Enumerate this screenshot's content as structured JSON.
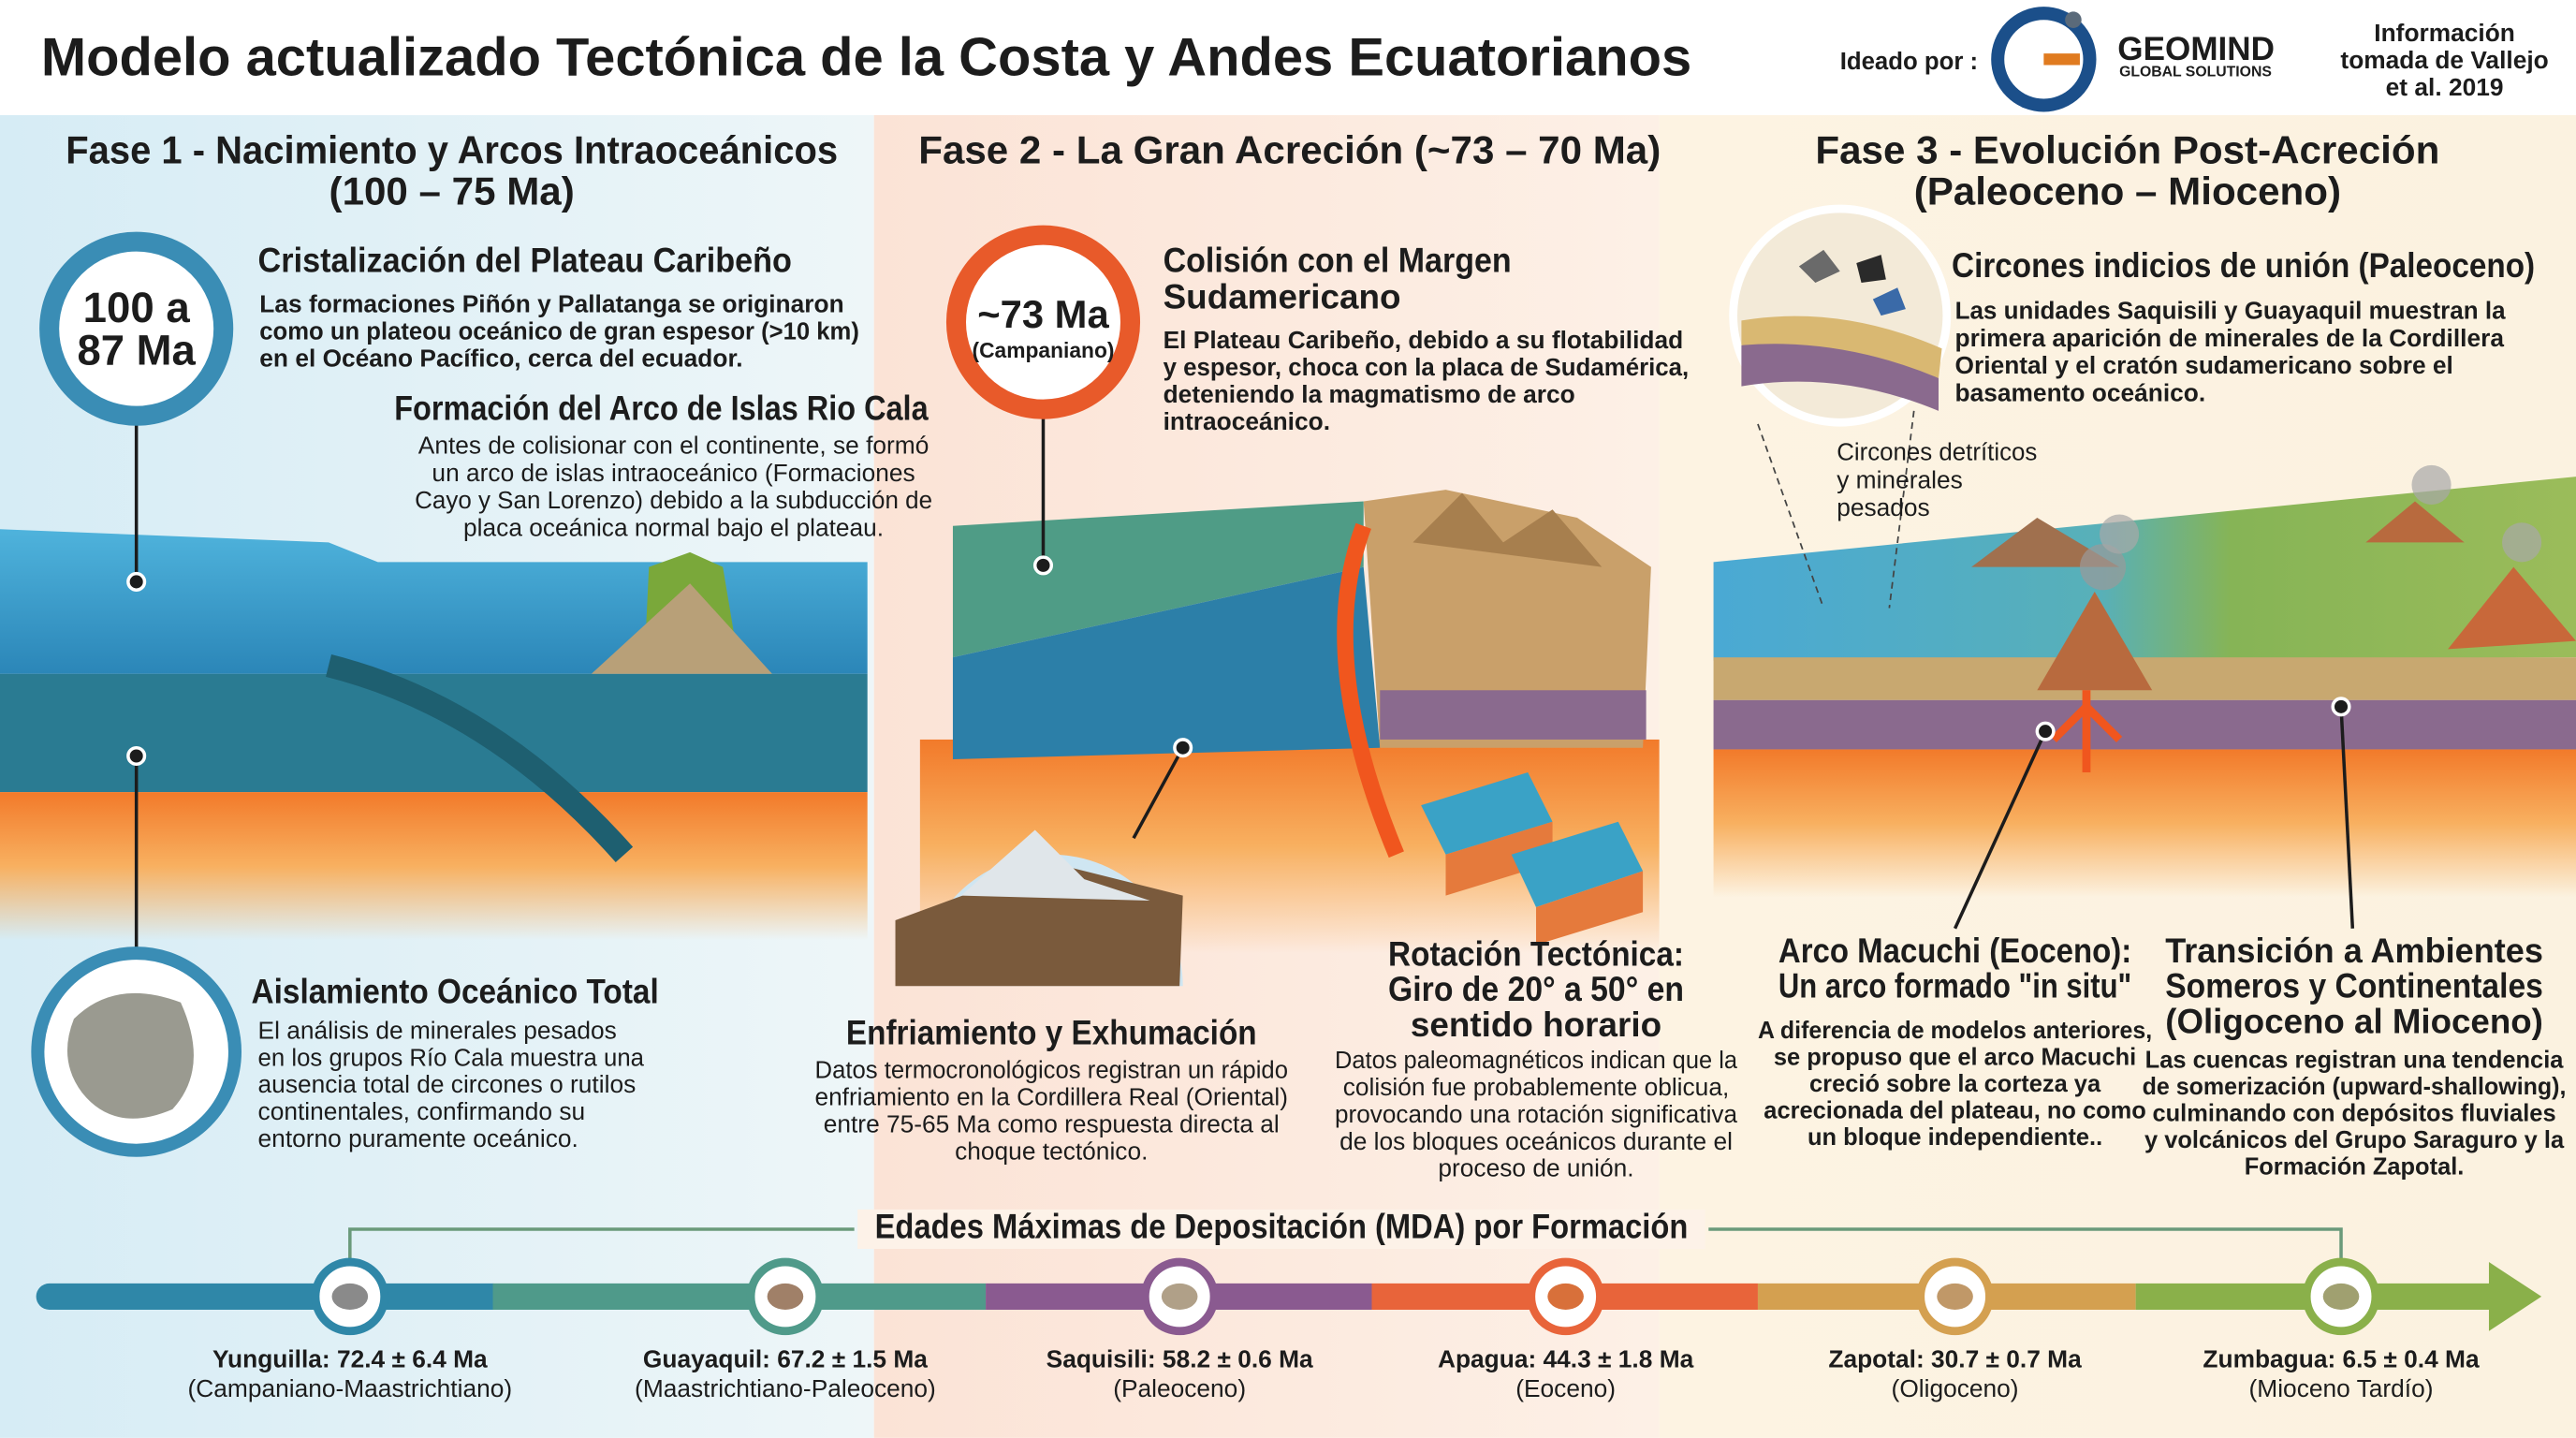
{
  "header": {
    "title": "Modelo actualizado Tectónica de la Costa y Andes Ecuatorianos",
    "credit_label": "Ideado por :",
    "logo_name": "GEOMIND",
    "logo_sub": "GLOBAL SOLUTIONS",
    "source": [
      "Información",
      "tomada de Vallejo",
      "et al. 2019"
    ]
  },
  "phases": [
    {
      "title": [
        "Fase 1 - Nacimiento y Arcos Intraoceánicos",
        "(100 – 75 Ma)"
      ],
      "badge": [
        "100 a",
        "87 Ma"
      ],
      "blocks": [
        {
          "title": [
            "Cristalización del Plateau Caribeño"
          ],
          "body": [
            "Las formaciones Piñón y Pallatanga se originaron",
            "como un plateou oceánico de gran espesor (>10 km)",
            "en el Océano Pacífico, cerca del ecuador."
          ]
        },
        {
          "title": [
            "Formación del Arco de Islas Rio Cala"
          ],
          "body": [
            "Antes de colisionar con el continente, se formó",
            "un arco de islas intraoceánico (Formaciones",
            "Cayo y San Lorenzo) debido a la subducción de",
            "placa oceánica normal bajo el plateau."
          ]
        },
        {
          "title": [
            "Aislamiento Oceánico Total"
          ],
          "body": [
            "El análisis de minerales pesados",
            "en los grupos Río Cala muestra una",
            "ausencia total de circones o rutilos",
            "continentales, confirmando su",
            "entorno puramente oceánico."
          ]
        }
      ]
    },
    {
      "title": [
        "Fase 2 - La Gran Acreción (~73 – 70 Ma)"
      ],
      "badge": [
        "~73 Ma",
        "(Campaniano)"
      ],
      "blocks": [
        {
          "title": [
            "Colisión con el Margen",
            "Sudamericano"
          ],
          "body": [
            "El Plateau Caribeño, debido a su flotabilidad",
            "y espesor, choca con la placa de Sudamérica,",
            "deteniendo la magmatismo de arco",
            "intraoceánico."
          ]
        },
        {
          "title": [
            "Enfriamiento y Exhumación"
          ],
          "body": [
            "Datos termocronológicos registran un rápido",
            "enfriamiento en la Cordillera Real (Oriental)",
            "entre 75-65 Ma como respuesta directa al",
            "choque tectónico."
          ]
        },
        {
          "title": [
            "Rotación Tectónica:",
            "Giro de 20° a 50° en",
            "sentido horario"
          ],
          "body": [
            "Datos paleomagnéticos indican que la",
            "colisión fue probablemente oblicua,",
            "provocando una rotación significativa",
            "de los bloques oceánicos durante el",
            "proceso de unión."
          ]
        }
      ]
    },
    {
      "title": [
        "Fase 3 - Evolución Post-Acreción",
        "(Paleoceno – Mioceno)"
      ],
      "callout": [
        "Circones detríticos",
        "y minerales",
        "pesados"
      ],
      "blocks": [
        {
          "title": [
            "Circones indicios de unión (Paleoceno)"
          ],
          "body": [
            "Las unidades Saquisili y Guayaquil muestran la",
            "primera aparición de minerales de la Cordillera",
            "Oriental y el cratón sudamericano sobre el",
            "basamento oceánico."
          ]
        },
        {
          "title": [
            "Arco Macuchi (Eoceno):",
            "Un arco formado \"in situ\""
          ],
          "body": [
            "A diferencia de modelos anteriores,",
            "se propuso que el arco Macuchi",
            "creció sobre la corteza ya",
            "acrecionada del plateau, no como",
            "un bloque independiente.."
          ]
        },
        {
          "title": [
            "Transición a Ambientes",
            "Someros y Continentales",
            "(Oligoceno al Mioceno)"
          ],
          "body": [
            "Las cuencas registran una tendencia",
            "de somerización (upward-shallowing),",
            "culminando con depósitos fluviales",
            "y volcánicos del Grupo Saraguro y la",
            "Formación Zapotal."
          ]
        }
      ]
    }
  ],
  "timeline": {
    "title": "Edades Máximas de Depositación (MDA) por Formación",
    "items": [
      {
        "label": "Yunguilla: 72.4 ± 6.4 Ma",
        "period": "(Campaniano-Maastrichtiano)"
      },
      {
        "label": "Guayaquil: 67.2 ± 1.5 Ma",
        "period": "(Maastrichtiano-Paleoceno)"
      },
      {
        "label": "Saquisili: 58.2 ± 0.6 Ma",
        "period": "(Paleoceno)"
      },
      {
        "label": "Apagua: 44.3 ± 1.8 Ma",
        "period": "(Eoceno)"
      },
      {
        "label": "Zapotal: 30.7 ± 0.7 Ma",
        "period": "(Oligoceno)"
      },
      {
        "label": "Zumbagua: 6.5 ± 0.4 Ma",
        "period": "(Mioceno Tardío)"
      }
    ]
  }
}
